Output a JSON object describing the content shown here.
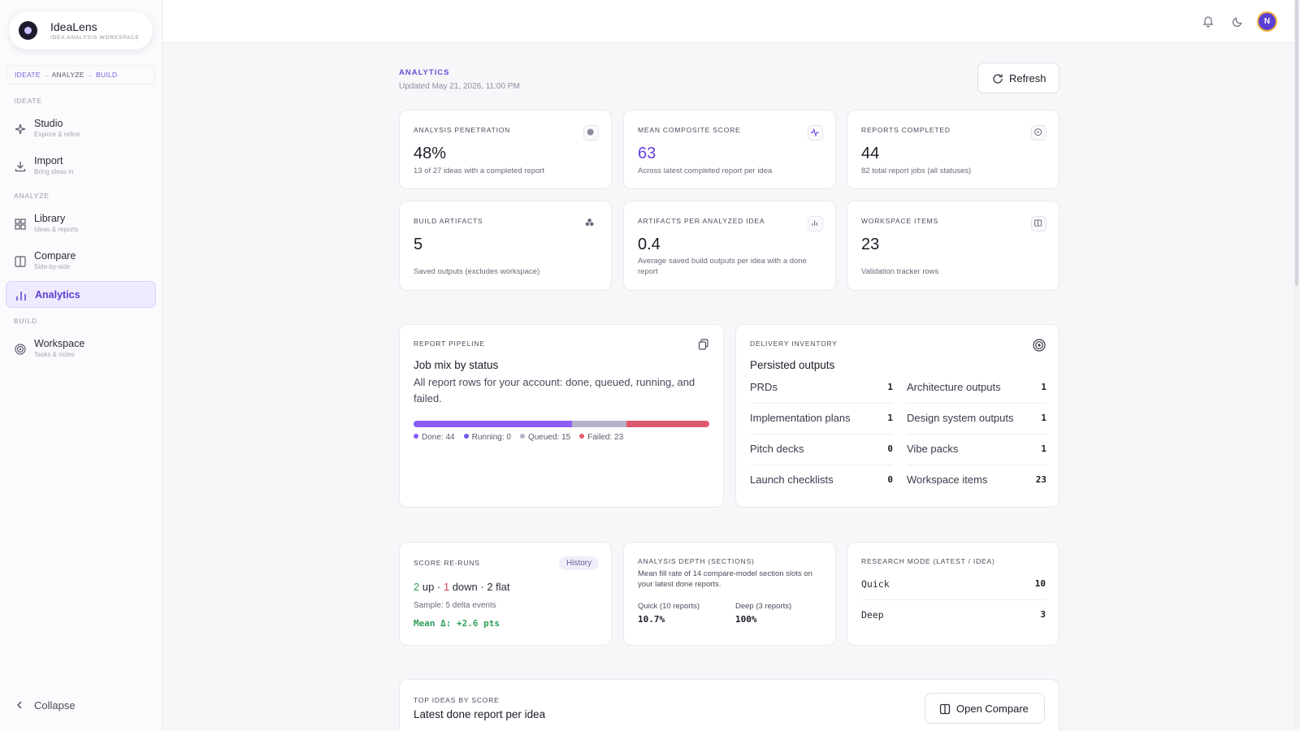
{
  "brand": {
    "name": "IdeaLens",
    "subtitle": "IDEA ANALYSIS WORKSPACE"
  },
  "flow": {
    "step1": "IDEATE",
    "step2": "ANALYZE",
    "step3": "BUILD",
    "arrow": "→"
  },
  "sidebar": {
    "sections": {
      "ideate": "IDEATE",
      "analyze": "ANALYZE",
      "build": "BUILD"
    },
    "items": [
      {
        "title": "Studio",
        "sub": "Explore & refine",
        "icon": "sparkle-icon"
      },
      {
        "title": "Import",
        "sub": "Bring ideas in",
        "icon": "download-icon"
      },
      {
        "title": "Library",
        "sub": "Ideas & reports",
        "icon": "grid-icon"
      },
      {
        "title": "Compare",
        "sub": "Side-by-side",
        "icon": "columns-icon"
      },
      {
        "title": "Analytics",
        "sub": "",
        "icon": "bar-chart-icon",
        "active": true
      },
      {
        "title": "Workspace",
        "sub": "Tasks & notes",
        "icon": "target-icon"
      }
    ],
    "collapse_label": "Collapse"
  },
  "topbar": {
    "avatar_initial": "N"
  },
  "header": {
    "label": "ANALYTICS",
    "updated": "Updated May 21, 2026, 11:00 PM",
    "refresh_label": "Refresh"
  },
  "metrics": [
    {
      "title": "ANALYSIS PENETRATION",
      "value": "48%",
      "desc": "13 of 27 ideas with a completed report",
      "icon": "record-icon"
    },
    {
      "title": "MEAN COMPOSITE SCORE",
      "value": "63",
      "desc": "Across latest completed report per idea",
      "icon": "pulse-icon"
    },
    {
      "title": "REPORTS COMPLETED",
      "value": "44",
      "desc": "82 total report jobs (all statuses)",
      "icon": "clock-icon"
    },
    {
      "title": "BUILD ARTIFACTS",
      "value": "5",
      "desc": "Saved outputs (excludes workspace)",
      "icon": "cubes-icon"
    },
    {
      "title": "ARTIFACTS PER ANALYZED IDEA",
      "value": "0.4",
      "desc": "Average saved build outputs per idea with a done report",
      "icon": "bar-chart-icon"
    },
    {
      "title": "WORKSPACE ITEMS",
      "value": "23",
      "desc": "Validation tracker rows",
      "icon": "columns-icon"
    }
  ],
  "pipeline": {
    "label": "REPORT PIPELINE",
    "title": "Job mix by status",
    "text": "All report rows for your account: done, queued, running, and failed.",
    "segments": [
      {
        "name": "Done",
        "count": 44,
        "color": "#8b5cf6"
      },
      {
        "name": "Running",
        "count": 0,
        "color": "#6d5ae6"
      },
      {
        "name": "Queued",
        "count": 15,
        "color": "#b7b2c6"
      },
      {
        "name": "Failed",
        "count": 23,
        "color": "#e0596a"
      }
    ],
    "legend": [
      "Done: 44",
      "Running: 0",
      "Queued: 15",
      "Failed: 23"
    ]
  },
  "inventory": {
    "label": "DELIVERY INVENTORY",
    "title": "Persisted outputs",
    "left": [
      {
        "name": "PRDs",
        "value": "1"
      },
      {
        "name": "Implementation plans",
        "value": "1"
      },
      {
        "name": "Pitch decks",
        "value": "0"
      },
      {
        "name": "Launch checklists",
        "value": "0"
      }
    ],
    "right": [
      {
        "name": "Architecture outputs",
        "value": "1"
      },
      {
        "name": "Design system outputs",
        "value": "1"
      },
      {
        "name": "Vibe packs",
        "value": "1"
      },
      {
        "name": "Workspace items",
        "value": "23"
      }
    ]
  },
  "reruns": {
    "label": "SCORE RE-RUNS",
    "history_label": "History",
    "up": "2",
    "up_word": " up · ",
    "down": "1",
    "down_word": " down · ",
    "flat": "2 flat",
    "sample": "Sample: 5 delta events",
    "mean": "Mean Δ: +2.6 pts"
  },
  "depth": {
    "label": "ANALYSIS DEPTH (SECTIONS)",
    "desc": "Mean fill rate of 14 compare-model section slots on your latest done reports.",
    "quick_label": "Quick (10 reports)",
    "quick_value": "10.7%",
    "deep_label": "Deep (3 reports)",
    "deep_value": "100%"
  },
  "research": {
    "label": "RESEARCH MODE (LATEST / IDEA)",
    "rows": [
      {
        "name": "Quick",
        "value": "10"
      },
      {
        "name": "Deep",
        "value": "3"
      }
    ]
  },
  "top_ideas": {
    "label": "TOP IDEAS BY SCORE",
    "title": "Latest done report per idea",
    "button": "Open Compare"
  }
}
